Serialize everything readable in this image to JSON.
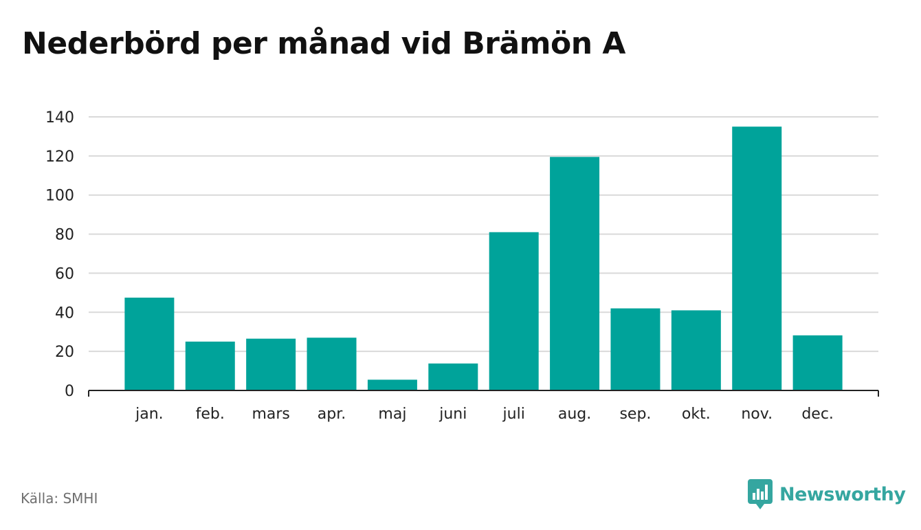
{
  "title": "Nederbörd per månad vid Brämön A",
  "source": "Källa: SMHI",
  "brand": {
    "name": "Newsworthy",
    "icon": "bar-chart-speech-bubble-icon",
    "color": "#35a6a0"
  },
  "colors": {
    "bar": "#00a39a",
    "grid": "#d9d9d9",
    "axis": "#222222",
    "tick_text": "#222222"
  },
  "chart_data": {
    "type": "bar",
    "title": "Nederbörd per månad vid Brämön A",
    "xlabel": "",
    "ylabel": "",
    "categories": [
      "jan.",
      "feb.",
      "mars",
      "apr.",
      "maj",
      "juni",
      "juli",
      "aug.",
      "sep.",
      "okt.",
      "nov.",
      "dec."
    ],
    "values": [
      47.5,
      25,
      26.5,
      27,
      5.5,
      13.8,
      81,
      119.5,
      42,
      41,
      135,
      28.2
    ],
    "ylim": [
      0,
      140
    ],
    "yticks": [
      0,
      20,
      40,
      60,
      80,
      100,
      120,
      140
    ],
    "grid": true,
    "legend": "none"
  }
}
